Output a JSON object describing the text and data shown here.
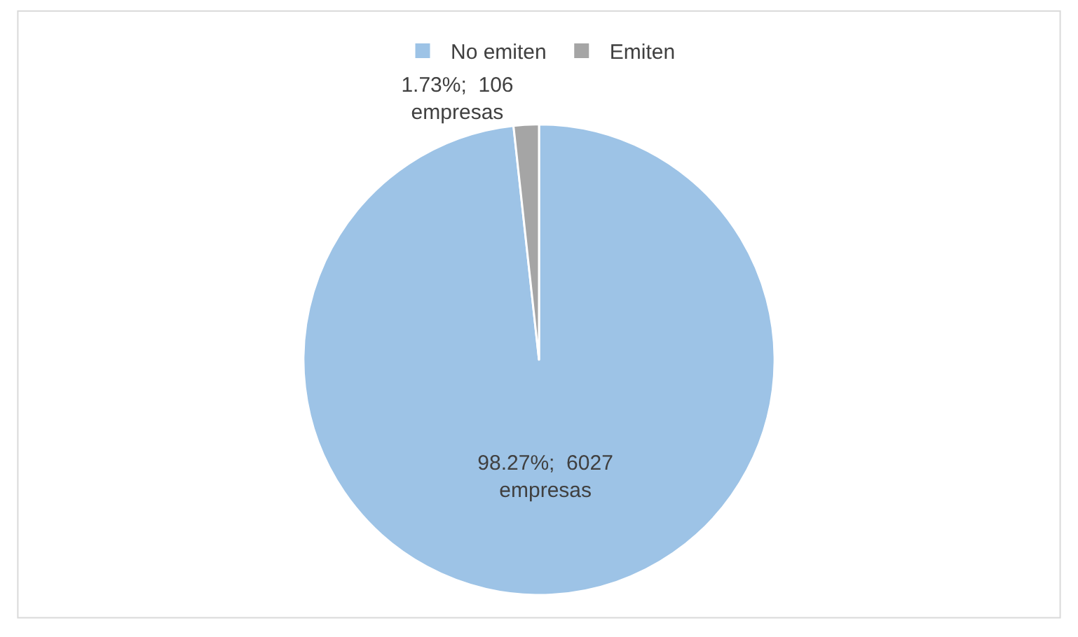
{
  "chart_data": {
    "type": "pie",
    "categories": [
      "No emiten",
      "Emiten"
    ],
    "values": [
      6027,
      106
    ],
    "colors": [
      "#9dc3e6",
      "#a5a5a5"
    ],
    "value_labels": [
      "98.27%;  6027 empresas",
      "1.73%;  106 empresas"
    ],
    "legend": "top"
  }
}
